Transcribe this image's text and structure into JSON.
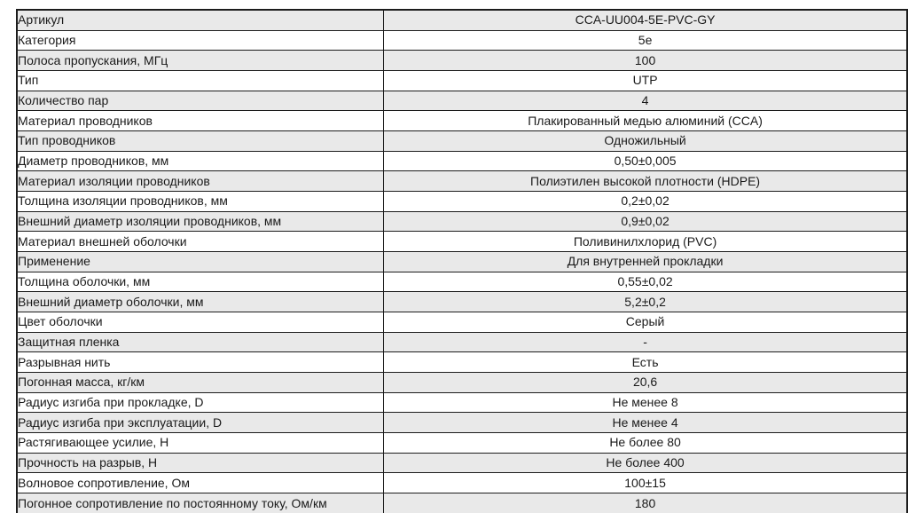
{
  "table": {
    "rows": [
      {
        "label": "Артикул",
        "value": "CCA-UU004-5E-PVC-GY"
      },
      {
        "label": "Категория",
        "value": "5e"
      },
      {
        "label": "Полоса пропускания, МГц",
        "value": "100"
      },
      {
        "label": "Тип",
        "value": "UTP"
      },
      {
        "label": "Количество пар",
        "value": "4"
      },
      {
        "label": "Материал проводников",
        "value": "Плакированный медью алюминий (CCA)"
      },
      {
        "label": "Тип проводников",
        "value": "Одножильный"
      },
      {
        "label": "Диаметр проводников, мм",
        "value": "0,50±0,005"
      },
      {
        "label": "Материал изоляции проводников",
        "value": "Полиэтилен высокой плотности (HDPE)"
      },
      {
        "label": "Толщина изоляции проводников, мм",
        "value": "0,2±0,02"
      },
      {
        "label": "Внешний диаметр изоляции проводников, мм",
        "value": "0,9±0,02"
      },
      {
        "label": "Материал внешней оболочки",
        "value": "Поливинилхлорид (PVC)"
      },
      {
        "label": "Применение",
        "value": "Для внутренней прокладки"
      },
      {
        "label": "Толщина оболочки, мм",
        "value": "0,55±0,02"
      },
      {
        "label": "Внешний диаметр оболочки, мм",
        "value": "5,2±0,2"
      },
      {
        "label": "Цвет оболочки",
        "value": "Серый"
      },
      {
        "label": "Защитная пленка",
        "value": "-"
      },
      {
        "label": "Разрывная нить",
        "value": "Есть"
      },
      {
        "label": "Погонная масса, кг/км",
        "value": "20,6"
      },
      {
        "label": "Радиус изгиба при прокладке, D",
        "value": "Не менее 8"
      },
      {
        "label": "Радиус изгиба при эксплуатации, D",
        "value": "Не менее 4"
      },
      {
        "label": "Растягивающее усилие, Н",
        "value": "Не более 80"
      },
      {
        "label": "Прочность на разрыв, Н",
        "value": "Не более 400"
      },
      {
        "label": "Волновое сопротивление, Ом",
        "value": "100±15"
      },
      {
        "label": "Погонное сопротивление по постоянному току, Ом/км",
        "value": "180"
      }
    ]
  },
  "colors": {
    "row_alt_background": "#e9e9e9",
    "row_background": "#ffffff",
    "border": "#1c1c1c",
    "text": "#1a1a1a"
  }
}
